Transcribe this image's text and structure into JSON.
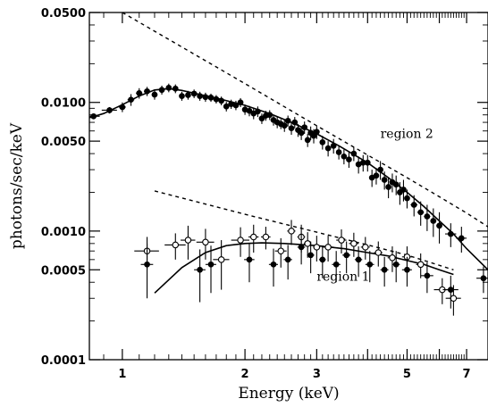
{
  "chart_data": {
    "type": "scatter",
    "xlabel": "Energy (keV)",
    "ylabel": "photons/sec/keV",
    "xscale": "log",
    "yscale": "log",
    "xlim": [
      0.83,
      7.9
    ],
    "ylim": [
      0.0001,
      0.05
    ],
    "xticks": [
      1,
      2,
      3,
      5,
      7
    ],
    "yticks": [
      0.0001,
      0.0005,
      0.001,
      0.005,
      0.01,
      0.05
    ],
    "ytick_labels": [
      "0.0001",
      "0.0005",
      "0.0010",
      "0.0050",
      "0.0100",
      "0.0500"
    ],
    "grid": false,
    "annotations": [
      {
        "text": "region 2",
        "x": 4.3,
        "y": 0.0053
      },
      {
        "text": "region 1",
        "x": 3.0,
        "y": 0.00041
      }
    ],
    "series": [
      {
        "marker": "filled-circle",
        "x": [
          0.85,
          0.93,
          1.0,
          1.05,
          1.1,
          1.15,
          1.2,
          1.25,
          1.3,
          1.35,
          1.4,
          1.45,
          1.5,
          1.55,
          1.6,
          1.65,
          1.7,
          1.75,
          1.8,
          1.85,
          1.9,
          1.95,
          2.0,
          2.05,
          2.1,
          2.15,
          2.2,
          2.25,
          2.3,
          2.35,
          2.4,
          2.45,
          2.5,
          2.55,
          2.6,
          2.65,
          2.7,
          2.75,
          2.8,
          2.85,
          2.9,
          2.95,
          3.0,
          3.1,
          3.2,
          3.3,
          3.4,
          3.5,
          3.6,
          3.7,
          3.8,
          3.9,
          4.0,
          4.1,
          4.2,
          4.3,
          4.4,
          4.5,
          4.6,
          4.7,
          4.8,
          4.9,
          5.0,
          5.2,
          5.4,
          5.6,
          5.8,
          6.0,
          6.4,
          6.8,
          7.7
        ],
        "y": [
          0.0078,
          0.0087,
          0.0092,
          0.0105,
          0.0118,
          0.0122,
          0.0115,
          0.0125,
          0.013,
          0.0128,
          0.0112,
          0.0114,
          0.0117,
          0.0112,
          0.011,
          0.0109,
          0.0106,
          0.0103,
          0.0093,
          0.0097,
          0.0095,
          0.01,
          0.0088,
          0.0086,
          0.0082,
          0.0085,
          0.0075,
          0.0079,
          0.008,
          0.0073,
          0.007,
          0.0068,
          0.0066,
          0.0072,
          0.0063,
          0.007,
          0.0061,
          0.0058,
          0.0064,
          0.0051,
          0.0058,
          0.0055,
          0.0059,
          0.0049,
          0.0044,
          0.0046,
          0.0041,
          0.0038,
          0.0036,
          0.004,
          0.0033,
          0.0034,
          0.0034,
          0.0026,
          0.0027,
          0.003,
          0.0025,
          0.0022,
          0.0024,
          0.0023,
          0.002,
          0.0021,
          0.0018,
          0.0016,
          0.0014,
          0.0013,
          0.0012,
          0.0011,
          0.00095,
          0.00088,
          0.00043
        ],
        "err": [
          0.0004,
          0.0005,
          0.0008,
          0.0011,
          0.0011,
          0.001,
          0.001,
          0.001,
          0.001,
          0.001,
          0.0009,
          0.0009,
          0.0009,
          0.0009,
          0.0009,
          0.0008,
          0.0008,
          0.0008,
          0.0008,
          0.0008,
          0.0008,
          0.0008,
          0.0008,
          0.0008,
          0.0008,
          0.0008,
          0.0007,
          0.0007,
          0.0007,
          0.0007,
          0.0007,
          0.0006,
          0.0007,
          0.0007,
          0.0007,
          0.0007,
          0.0007,
          0.0007,
          0.0007,
          0.0006,
          0.0007,
          0.0007,
          0.0007,
          0.0006,
          0.0006,
          0.0006,
          0.0005,
          0.0005,
          0.0005,
          0.0005,
          0.0005,
          0.0005,
          0.0005,
          0.0004,
          0.0004,
          0.0005,
          0.0004,
          0.0004,
          0.0004,
          0.0004,
          0.0004,
          0.0004,
          0.0003,
          0.0003,
          0.0003,
          0.0003,
          0.0003,
          0.0003,
          0.0002,
          0.0002,
          0.0001
        ],
        "xerr": [
          0.03,
          0.04,
          0.02,
          0.02,
          0.02,
          0.02,
          0.02,
          0.02,
          0.02,
          0.02,
          0.02,
          0.02,
          0.02,
          0.02,
          0.02,
          0.02,
          0.02,
          0.02,
          0.02,
          0.02,
          0.02,
          0.02,
          0.02,
          0.02,
          0.02,
          0.02,
          0.02,
          0.02,
          0.02,
          0.02,
          0.02,
          0.02,
          0.02,
          0.02,
          0.02,
          0.02,
          0.02,
          0.02,
          0.02,
          0.02,
          0.02,
          0.02,
          0.05,
          0.05,
          0.05,
          0.05,
          0.05,
          0.05,
          0.05,
          0.05,
          0.05,
          0.05,
          0.05,
          0.05,
          0.05,
          0.05,
          0.05,
          0.05,
          0.05,
          0.05,
          0.05,
          0.05,
          0.05,
          0.1,
          0.1,
          0.1,
          0.1,
          0.1,
          0.2,
          0.2,
          0.3
        ]
      },
      {
        "marker": "open-circle",
        "x": [
          1.15,
          1.35,
          1.45,
          1.6,
          1.75,
          1.95,
          2.1,
          2.25,
          2.45,
          2.6,
          2.75,
          2.85,
          3.0,
          3.2,
          3.45,
          3.7,
          3.95,
          4.25,
          4.6,
          5.0,
          5.4,
          6.1,
          6.5
        ],
        "y": [
          0.0007,
          0.00078,
          0.00085,
          0.00082,
          0.0006,
          0.00085,
          0.0009,
          0.0009,
          0.0007,
          0.001,
          0.0009,
          0.0008,
          0.00075,
          0.00075,
          0.00085,
          0.0008,
          0.00075,
          0.00068,
          0.00062,
          0.00063,
          0.00055,
          0.00035,
          0.0003
        ],
        "err": [
          0.0002,
          0.00018,
          0.00025,
          0.00022,
          0.00025,
          0.00022,
          0.00022,
          0.00018,
          0.00018,
          0.00022,
          0.00022,
          0.00018,
          0.00017,
          0.00017,
          0.00018,
          0.00017,
          0.00015,
          0.00015,
          0.00014,
          0.00013,
          0.00012,
          8e-05,
          8e-05
        ],
        "xerr": [
          0.08,
          0.08,
          0.06,
          0.08,
          0.08,
          0.1,
          0.06,
          0.06,
          0.08,
          0.06,
          0.06,
          0.06,
          0.06,
          0.1,
          0.1,
          0.1,
          0.1,
          0.1,
          0.12,
          0.14,
          0.14,
          0.28,
          0.28
        ]
      },
      {
        "marker": "filled-circle",
        "x": [
          1.15,
          1.55,
          1.65,
          2.05,
          2.35,
          2.55,
          2.75,
          2.9,
          3.1,
          3.35,
          3.55,
          3.8,
          4.05,
          4.4,
          4.7,
          5.0,
          5.6,
          6.4
        ],
        "y": [
          0.00055,
          0.0005,
          0.00055,
          0.0006,
          0.00055,
          0.0006,
          0.00075,
          0.00065,
          0.0006,
          0.00055,
          0.00065,
          0.0006,
          0.00055,
          0.0005,
          0.00055,
          0.0005,
          0.00045,
          0.00035
        ],
        "err": [
          0.00025,
          0.00022,
          0.00022,
          0.0002,
          0.00018,
          0.00018,
          0.0002,
          0.00018,
          0.00017,
          0.00015,
          0.00018,
          0.00016,
          0.00015,
          0.00013,
          0.00015,
          0.00013,
          0.00012,
          0.0001
        ],
        "xerr": [
          0.04,
          0.05,
          0.05,
          0.06,
          0.06,
          0.06,
          0.06,
          0.06,
          0.06,
          0.08,
          0.08,
          0.08,
          0.1,
          0.1,
          0.1,
          0.14,
          0.2,
          0.28
        ]
      },
      {
        "style": "solid",
        "x": [
          0.83,
          0.9,
          1.0,
          1.1,
          1.2,
          1.3,
          1.4,
          1.5,
          1.7,
          2.0,
          2.3,
          2.6,
          3.0,
          3.4,
          4.0,
          4.5,
          5.0,
          5.5,
          6.0,
          6.5,
          7.0,
          7.9
        ],
        "y": [
          0.0076,
          0.0082,
          0.0096,
          0.0112,
          0.0125,
          0.0128,
          0.0124,
          0.0118,
          0.0108,
          0.0095,
          0.0082,
          0.007,
          0.0057,
          0.0046,
          0.0034,
          0.0026,
          0.002,
          0.00155,
          0.0012,
          0.00095,
          0.00073,
          0.0005
        ]
      },
      {
        "style": "dashed",
        "x": [
          1.0,
          2.0,
          3.0,
          4.0,
          5.0,
          6.0,
          7.0,
          7.9
        ],
        "y": [
          0.05,
          0.014,
          0.0066,
          0.0039,
          0.0026,
          0.00185,
          0.00138,
          0.00108
        ]
      },
      {
        "style": "solid",
        "x": [
          1.2,
          1.4,
          1.6,
          1.8,
          2.0,
          2.2,
          2.5,
          3.0,
          3.5,
          4.0,
          4.5,
          5.0,
          5.5,
          6.0,
          6.5
        ],
        "y": [
          0.00033,
          0.00052,
          0.00068,
          0.00077,
          0.0008,
          0.00081,
          0.0008,
          0.00077,
          0.00073,
          0.00068,
          0.00064,
          0.00059,
          0.00055,
          0.0005,
          0.00046
        ]
      },
      {
        "style": "dashed",
        "x": [
          1.2,
          2.0,
          3.0,
          4.0,
          5.0,
          6.5
        ],
        "y": [
          0.00205,
          0.00135,
          0.00098,
          0.00078,
          0.00065,
          0.0005
        ]
      }
    ]
  }
}
